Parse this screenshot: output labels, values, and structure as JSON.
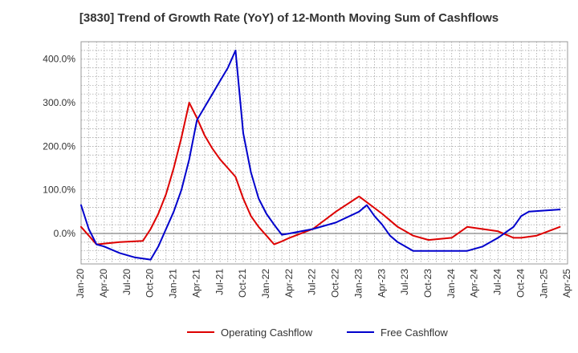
{
  "chart_data": {
    "type": "line",
    "title": "[3830]  Trend of Growth Rate (YoY) of 12-Month Moving Sum of Cashflows",
    "xlabel": "",
    "ylabel": "",
    "x_tick_labels": [
      "Jan-20",
      "Apr-20",
      "Jul-20",
      "Oct-20",
      "Jan-21",
      "Apr-21",
      "Jul-21",
      "Oct-21",
      "Jan-22",
      "Apr-22",
      "Jul-22",
      "Oct-22",
      "Jan-23",
      "Apr-23",
      "Jul-23",
      "Oct-23",
      "Jan-24",
      "Apr-24",
      "Jul-24",
      "Oct-24",
      "Jan-25",
      "Apr-25"
    ],
    "y_tick_labels": [
      "0.0%",
      "100.0%",
      "200.0%",
      "300.0%",
      "400.0%"
    ],
    "y_ticks": [
      0,
      100,
      200,
      300,
      400
    ],
    "ylim": [
      -70,
      440
    ],
    "x_range_months": [
      0,
      63
    ],
    "grid": true,
    "legend_position": "bottom-center",
    "series": [
      {
        "name": "Operating Cashflow",
        "color": "#dd0000",
        "x": [
          0,
          2,
          5,
          8,
          9,
          10,
          11,
          12,
          13,
          14,
          15,
          16,
          17,
          18,
          19,
          20,
          21,
          22,
          23,
          24,
          25,
          26,
          27,
          30,
          33,
          36,
          39,
          40,
          41,
          43,
          45,
          48,
          50,
          52,
          54,
          56,
          57,
          59,
          62
        ],
        "y": [
          15,
          -25,
          -20,
          -17,
          10,
          45,
          90,
          150,
          220,
          300,
          265,
          225,
          195,
          170,
          150,
          130,
          80,
          40,
          15,
          -5,
          -25,
          -18,
          -10,
          10,
          50,
          85,
          45,
          30,
          15,
          -5,
          -15,
          -10,
          15,
          10,
          5,
          -10,
          -10,
          -5,
          15
        ]
      },
      {
        "name": "Free Cashflow",
        "color": "#0000cc",
        "x": [
          0,
          1,
          2,
          3,
          5,
          7,
          9,
          10,
          11,
          12,
          13,
          14,
          15,
          16,
          17,
          18,
          19,
          20,
          21,
          22,
          23,
          24,
          25,
          26,
          27,
          30,
          33,
          36,
          37,
          38,
          39,
          40,
          41,
          43,
          45,
          48,
          50,
          52,
          54,
          56,
          57,
          58,
          62
        ],
        "y": [
          65,
          10,
          -25,
          -30,
          -45,
          -55,
          -60,
          -30,
          10,
          50,
          100,
          170,
          260,
          290,
          320,
          350,
          380,
          420,
          230,
          140,
          80,
          45,
          20,
          -3,
          0,
          10,
          25,
          50,
          65,
          40,
          20,
          -5,
          -20,
          -40,
          -40,
          -40,
          -40,
          -30,
          -10,
          15,
          40,
          50,
          55
        ]
      }
    ]
  }
}
